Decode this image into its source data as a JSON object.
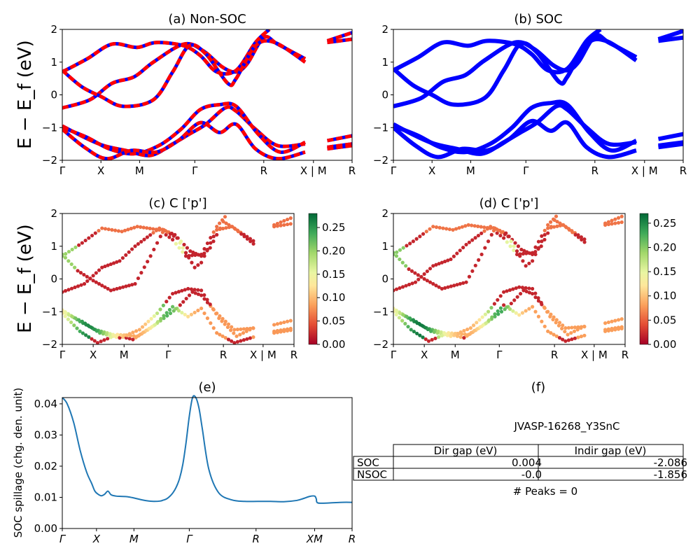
{
  "chart_data": [
    {
      "id": "a",
      "type": "line",
      "title": "(a) Non-SOC",
      "ylabel": "E − E_f (eV)",
      "ylim": [
        -2,
        2
      ],
      "yticks": [
        "2",
        "1",
        "0",
        "−1",
        "−2"
      ],
      "xticks": [
        "Γ",
        "X",
        "M",
        "Γ",
        "R",
        "X | M",
        "R"
      ],
      "series_colors": [
        "#ff0000",
        "#0000ff"
      ],
      "style": "red dashed over blue",
      "bands": [
        [
          [
            0,
            -0.4
          ],
          [
            1,
            -0.15
          ],
          [
            1.8,
            0.35
          ],
          [
            2.6,
            0.55
          ],
          [
            3.3,
            1.0
          ],
          [
            4.4,
            1.55
          ],
          [
            5.1,
            1.35
          ],
          [
            5.8,
            0.85
          ],
          [
            6.3,
            0.7
          ],
          [
            6.7,
            0.95
          ],
          [
            7.3,
            1.75
          ],
          [
            7.8,
            1.55
          ],
          [
            8.8,
            1.1
          ],
          [
            9.6,
            1.65
          ],
          [
            10.5,
            1.9
          ]
        ],
        [
          [
            0,
            0.7
          ],
          [
            0.9,
            1.1
          ],
          [
            1.8,
            1.55
          ],
          [
            2.7,
            1.45
          ],
          [
            3.4,
            1.6
          ],
          [
            4.4,
            1.5
          ],
          [
            5.0,
            1.2
          ],
          [
            5.6,
            0.7
          ],
          [
            6.3,
            0.75
          ],
          [
            7.0,
            1.6
          ],
          [
            7.5,
            2.0
          ]
        ],
        [
          [
            0,
            0.75
          ],
          [
            0.7,
            0.25
          ],
          [
            1.4,
            -0.05
          ],
          [
            2.2,
            -0.35
          ],
          [
            3.3,
            -0.15
          ],
          [
            4.0,
            0.7
          ],
          [
            4.6,
            1.5
          ],
          [
            5.2,
            1.25
          ],
          [
            6.0,
            0.35
          ],
          [
            6.3,
            0.5
          ],
          [
            7.0,
            1.5
          ],
          [
            7.7,
            1.6
          ],
          [
            8.8,
            1.0
          ],
          [
            9.6,
            1.6
          ],
          [
            10.5,
            1.7
          ]
        ],
        [
          [
            0,
            -0.95
          ],
          [
            0.8,
            -1.3
          ],
          [
            1.5,
            -1.55
          ],
          [
            2.3,
            -1.7
          ],
          [
            3.2,
            -1.85
          ],
          [
            4.0,
            -1.5
          ],
          [
            4.6,
            -1.2
          ],
          [
            5.2,
            -0.9
          ],
          [
            5.9,
            -0.4
          ],
          [
            6.3,
            -0.5
          ],
          [
            7.0,
            -1.05
          ],
          [
            7.8,
            -1.55
          ],
          [
            8.8,
            -1.5
          ],
          [
            9.6,
            -1.4
          ],
          [
            10.5,
            -1.25
          ]
        ],
        [
          [
            0,
            -1.0
          ],
          [
            0.9,
            -1.3
          ],
          [
            1.7,
            -1.65
          ],
          [
            2.6,
            -1.8
          ],
          [
            3.5,
            -1.55
          ],
          [
            4.3,
            -1.05
          ],
          [
            5.0,
            -0.45
          ],
          [
            5.7,
            -0.3
          ],
          [
            6.3,
            -0.35
          ],
          [
            7.1,
            -1.2
          ],
          [
            7.9,
            -1.75
          ],
          [
            8.8,
            -1.45
          ],
          [
            9.6,
            -1.6
          ],
          [
            10.5,
            -1.5
          ]
        ],
        [
          [
            0,
            -1.05
          ],
          [
            0.8,
            -1.6
          ],
          [
            1.6,
            -1.95
          ],
          [
            2.5,
            -1.7
          ],
          [
            3.4,
            -1.75
          ],
          [
            4.2,
            -1.4
          ],
          [
            5.0,
            -0.85
          ],
          [
            5.7,
            -1.15
          ],
          [
            6.3,
            -0.9
          ],
          [
            7.0,
            -1.65
          ],
          [
            7.8,
            -1.95
          ],
          [
            8.8,
            -1.75
          ],
          [
            9.6,
            -1.65
          ],
          [
            10.5,
            -1.55
          ]
        ]
      ]
    },
    {
      "id": "b",
      "type": "line",
      "title": "(b) SOC",
      "ylim": [
        -2,
        2
      ],
      "yticks": [
        "2",
        "1",
        "0",
        "−1",
        "−2"
      ],
      "xticks": [
        "Γ",
        "X",
        "M",
        "Γ",
        "R",
        "X | M",
        "R"
      ],
      "series_colors": [
        "#0000ff"
      ],
      "style": "solid thick blue",
      "bands": [
        [
          [
            0,
            -0.35
          ],
          [
            1,
            -0.1
          ],
          [
            1.8,
            0.4
          ],
          [
            2.6,
            0.6
          ],
          [
            3.3,
            1.05
          ],
          [
            4.4,
            1.6
          ],
          [
            5.1,
            1.4
          ],
          [
            5.8,
            0.9
          ],
          [
            6.3,
            0.75
          ],
          [
            6.7,
            1.0
          ],
          [
            7.3,
            1.8
          ],
          [
            7.8,
            1.6
          ],
          [
            8.8,
            1.15
          ],
          [
            9.6,
            1.7
          ],
          [
            10.5,
            1.95
          ]
        ],
        [
          [
            0,
            0.75
          ],
          [
            0.9,
            1.15
          ],
          [
            1.8,
            1.6
          ],
          [
            2.7,
            1.5
          ],
          [
            3.4,
            1.65
          ],
          [
            4.4,
            1.55
          ],
          [
            5.0,
            1.25
          ],
          [
            5.6,
            0.75
          ],
          [
            6.3,
            0.8
          ],
          [
            7.0,
            1.65
          ],
          [
            7.5,
            2.0
          ]
        ],
        [
          [
            0,
            0.8
          ],
          [
            0.7,
            0.3
          ],
          [
            1.4,
            0.0
          ],
          [
            2.2,
            -0.3
          ],
          [
            3.3,
            -0.1
          ],
          [
            4.0,
            0.75
          ],
          [
            4.6,
            1.55
          ],
          [
            5.2,
            1.3
          ],
          [
            6.0,
            0.4
          ],
          [
            6.3,
            0.55
          ],
          [
            7.0,
            1.55
          ],
          [
            7.7,
            1.65
          ],
          [
            8.8,
            1.05
          ],
          [
            9.6,
            1.65
          ],
          [
            10.5,
            1.75
          ]
        ],
        [
          [
            0,
            -0.9
          ],
          [
            0.8,
            -1.25
          ],
          [
            1.5,
            -1.5
          ],
          [
            2.3,
            -1.65
          ],
          [
            3.2,
            -1.8
          ],
          [
            4.0,
            -1.45
          ],
          [
            4.6,
            -1.15
          ],
          [
            5.2,
            -0.85
          ],
          [
            5.9,
            -0.35
          ],
          [
            6.3,
            -0.45
          ],
          [
            7.0,
            -1.0
          ],
          [
            7.8,
            -1.5
          ],
          [
            8.8,
            -1.45
          ],
          [
            9.6,
            -1.35
          ],
          [
            10.5,
            -1.2
          ]
        ],
        [
          [
            0,
            -0.95
          ],
          [
            0.9,
            -1.25
          ],
          [
            1.7,
            -1.6
          ],
          [
            2.6,
            -1.75
          ],
          [
            3.5,
            -1.5
          ],
          [
            4.3,
            -1.0
          ],
          [
            5.0,
            -0.4
          ],
          [
            5.7,
            -0.25
          ],
          [
            6.3,
            -0.3
          ],
          [
            7.1,
            -1.15
          ],
          [
            7.9,
            -1.7
          ],
          [
            8.8,
            -1.4
          ],
          [
            9.6,
            -1.55
          ],
          [
            10.5,
            -1.45
          ]
        ],
        [
          [
            0,
            -1.0
          ],
          [
            0.8,
            -1.55
          ],
          [
            1.6,
            -1.9
          ],
          [
            2.5,
            -1.65
          ],
          [
            3.4,
            -1.7
          ],
          [
            4.2,
            -1.35
          ],
          [
            5.0,
            -0.8
          ],
          [
            5.7,
            -1.1
          ],
          [
            6.3,
            -0.85
          ],
          [
            7.0,
            -1.6
          ],
          [
            7.8,
            -1.9
          ],
          [
            8.8,
            -1.7
          ],
          [
            9.6,
            -1.6
          ],
          [
            10.5,
            -1.5
          ]
        ]
      ]
    },
    {
      "id": "c",
      "type": "scatter",
      "title": "(c)  C ['p']",
      "ylabel": "E − E_f (eV)",
      "ylim": [
        -2,
        2
      ],
      "yticks": [
        "2",
        "1",
        "0",
        "−1",
        "−2"
      ],
      "xticks": [
        "Γ",
        "X",
        "M",
        "Γ",
        "R",
        "X | M",
        "R"
      ],
      "colorbar": {
        "min": 0.0,
        "max": 0.28,
        "ticks": [
          "0.25",
          "0.20",
          "0.15",
          "0.10",
          "0.05",
          "0.00"
        ],
        "colormap": "RdYlGn"
      }
    },
    {
      "id": "d",
      "type": "scatter",
      "title": "(d) C ['p']",
      "ylim": [
        -2,
        2
      ],
      "yticks": [
        "2",
        "1",
        "0",
        "−1",
        "−2"
      ],
      "xticks": [
        "Γ",
        "X",
        "M",
        "Γ",
        "R",
        "X | M",
        "R"
      ],
      "colorbar": {
        "min": 0.0,
        "max": 0.27,
        "ticks": [
          "0.25",
          "0.20",
          "0.15",
          "0.10",
          "0.05",
          "0.00"
        ],
        "colormap": "RdYlGn"
      }
    },
    {
      "id": "e",
      "type": "line",
      "title": "(e)",
      "ylabel": "SOC spillage (chg. den. unit)",
      "ylim": [
        0,
        0.042
      ],
      "yticks": [
        "0.04",
        "0.03",
        "0.02",
        "0.01",
        "0.00"
      ],
      "xticks": [
        "Γ",
        "X",
        "M",
        "Γ",
        "R",
        "XM",
        "R"
      ],
      "color": "#1f77b4",
      "x": [
        0,
        0.15,
        0.35,
        0.55,
        0.75,
        0.9,
        1.0,
        1.1,
        1.2,
        1.3,
        1.4,
        1.5,
        1.65,
        1.8,
        2.0,
        2.2,
        2.4,
        2.6,
        2.8,
        3.0,
        3.1,
        3.2,
        3.3,
        3.4,
        3.5,
        3.6,
        3.7,
        3.8,
        3.9,
        4.0,
        4.1,
        4.2,
        4.3,
        4.5,
        4.8,
        5.2,
        5.6,
        6.0,
        6.4,
        6.8,
        7.2,
        7.4,
        7.6,
        7.75,
        7.8,
        7.85,
        8.2,
        8.6,
        8.9
      ],
      "y": [
        0.042,
        0.04,
        0.034,
        0.025,
        0.018,
        0.0145,
        0.012,
        0.011,
        0.0105,
        0.011,
        0.012,
        0.0108,
        0.0104,
        0.0103,
        0.0102,
        0.0098,
        0.0093,
        0.0089,
        0.0087,
        0.0088,
        0.0091,
        0.0095,
        0.0103,
        0.0115,
        0.0133,
        0.016,
        0.0205,
        0.0275,
        0.036,
        0.042,
        0.042,
        0.0385,
        0.032,
        0.019,
        0.0115,
        0.0092,
        0.0087,
        0.0087,
        0.0087,
        0.0086,
        0.009,
        0.0096,
        0.0103,
        0.0104,
        0.0095,
        0.0082,
        0.0082,
        0.0084,
        0.0084
      ]
    }
  ],
  "table": {
    "title": "(f)",
    "caption": "JVASP-16268_Y3SnC",
    "columns": [
      "Dir gap (eV)",
      "Indir gap (eV)"
    ],
    "rows": [
      {
        "label": "SOC",
        "values": [
          "0.004",
          "-2.086"
        ]
      },
      {
        "label": "NSOC",
        "values": [
          "-0.0",
          "-1.856"
        ]
      }
    ],
    "footer": "# Peaks = 0"
  }
}
